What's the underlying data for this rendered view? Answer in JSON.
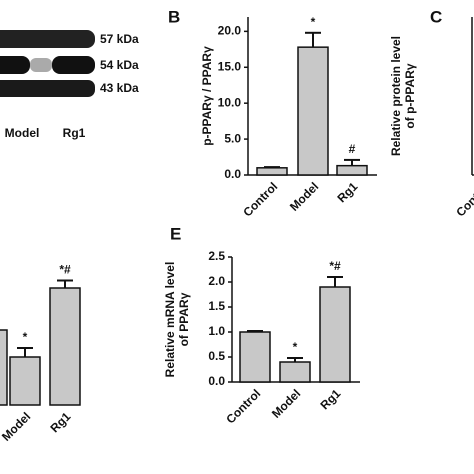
{
  "blot": {
    "bands": [
      "57 kDa",
      "54 kDa",
      "43 kDa"
    ],
    "lanes": [
      "Model",
      "Rg1"
    ]
  },
  "chart_data": [
    {
      "type": "bar",
      "panel": "B",
      "ylabel": [
        "p-PPARγ / PPARγ"
      ],
      "categories": [
        "Control",
        "Model",
        "Rg1"
      ],
      "values": [
        1.0,
        17.8,
        1.3
      ],
      "errors": [
        0.1,
        2.0,
        0.8
      ],
      "annotations": [
        null,
        "*",
        "#"
      ],
      "color": "#c8c8c8",
      "ylim": [
        0,
        22
      ],
      "yticks": [
        {
          "value": 0,
          "label": "0.0"
        },
        {
          "value": 5,
          "label": "5.0"
        },
        {
          "value": 10,
          "label": "10.0"
        },
        {
          "value": 15,
          "label": "15.0"
        },
        {
          "value": 20,
          "label": "20.0"
        }
      ]
    },
    {
      "type": "bar",
      "panel": "C",
      "ylabel": [
        "Relative protein level",
        "of p-PPARγ"
      ],
      "categories": [
        "Control"
      ]
    },
    {
      "type": "bar",
      "categories": [
        null,
        "Model",
        "Rg1"
      ],
      "values": [
        1.0,
        0.64,
        1.56
      ],
      "errors": [
        0.02,
        0.12,
        0.1
      ],
      "annotations": [
        null,
        "*",
        "*#"
      ],
      "color": "#c8c8c8",
      "ylim": [
        0,
        2
      ]
    },
    {
      "type": "bar",
      "panel": "E",
      "ylabel": [
        "Relative mRNA level",
        "of PPARγ"
      ],
      "categories": [
        "Control",
        "Model",
        "Rg1"
      ],
      "values": [
        1.0,
        0.4,
        1.9
      ],
      "errors": [
        0.02,
        0.08,
        0.2
      ],
      "annotations": [
        null,
        "*",
        "*#"
      ],
      "color": "#c8c8c8",
      "ylim": [
        0,
        2.5
      ],
      "yticks": [
        {
          "value": 0,
          "label": "0.0"
        },
        {
          "value": 0.5,
          "label": "0.5"
        },
        {
          "value": 1,
          "label": "1.0"
        },
        {
          "value": 1.5,
          "label": "1.5"
        },
        {
          "value": 2,
          "label": "2.0"
        },
        {
          "value": 2.5,
          "label": "2.5"
        }
      ]
    }
  ]
}
